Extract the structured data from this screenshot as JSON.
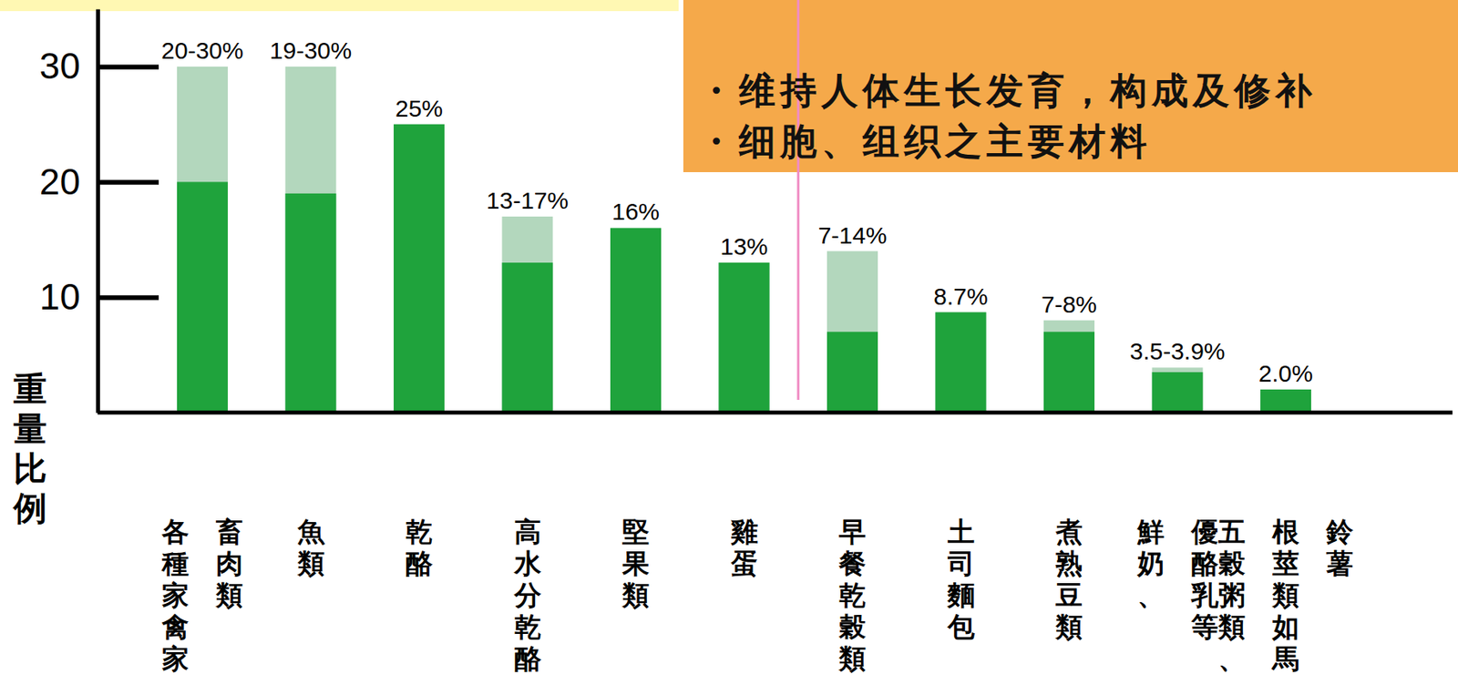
{
  "chart_data": {
    "type": "bar",
    "y_label": "重量比例",
    "annotations": [
      "・维持人体生长发育，构成及修补",
      "・细胞、组织之主要材料"
    ],
    "categories": [
      "各種家禽家畜肉類",
      "魚類",
      "乾酪",
      "高水分乾酪",
      "堅果類",
      "雞蛋",
      "早餐乾穀類",
      "土司麵包",
      "煮熟豆類",
      "鮮奶、優酪乳等",
      "五穀粥類、根莖類如馬鈴薯"
    ],
    "series": [
      {
        "color": "#b3d7bd",
        "values": [
          30,
          30,
          25,
          17,
          16,
          13,
          14,
          8.7,
          8,
          3.9,
          2.0
        ],
        "value_labels": [
          "20-30%",
          "19-30%",
          "25%",
          "13-17%",
          "16%",
          "13%",
          "7-14%",
          "8.7%",
          "7-8%",
          "3.5-3.9%",
          "2.0%"
        ]
      },
      {
        "color": "#1fa33c",
        "values": [
          20,
          19,
          25,
          13,
          16,
          13,
          7,
          8.7,
          7,
          3.5,
          2.0
        ]
      }
    ],
    "data_labels": true,
    "grid": false,
    "ylim": [
      0,
      35
    ],
    "yticks": [
      10,
      20,
      30
    ]
  }
}
